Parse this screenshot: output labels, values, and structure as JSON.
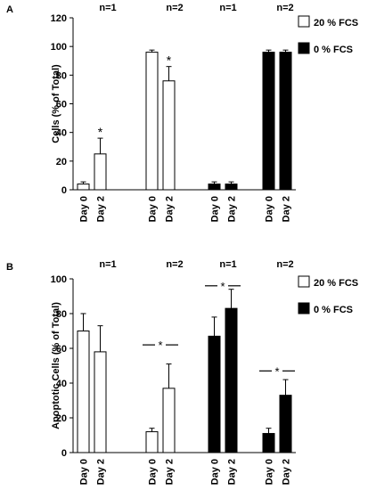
{
  "chart_data": [
    {
      "type": "bar",
      "panel_label": "A",
      "ylabel": "Cells (% of Total)",
      "ylim": [
        0,
        120
      ],
      "yticks": [
        0,
        20,
        40,
        60,
        80,
        100,
        120
      ],
      "groups": [
        {
          "n_label": "n=1",
          "condition": "20 % FCS",
          "bars": [
            {
              "label": "Day 0",
              "value": 4,
              "error": 1.5,
              "star": false
            },
            {
              "label": "Day 2",
              "value": 25,
              "error": 11,
              "star": true
            }
          ]
        },
        {
          "n_label": "n=2",
          "condition": "20 % FCS",
          "bars": [
            {
              "label": "Day 0",
              "value": 96,
              "error": 1.5,
              "star": false
            },
            {
              "label": "Day 2",
              "value": 76,
              "error": 10,
              "star": true
            }
          ]
        },
        {
          "n_label": "n=1",
          "condition": "0 % FCS",
          "bars": [
            {
              "label": "Day 0",
              "value": 4,
              "error": 1.5,
              "star": false
            },
            {
              "label": "Day 2",
              "value": 4,
              "error": 1.5,
              "star": false
            }
          ]
        },
        {
          "n_label": "n=2",
          "condition": "0 % FCS",
          "bars": [
            {
              "label": "Day 0",
              "value": 96,
              "error": 1.5,
              "star": false
            },
            {
              "label": "Day 2",
              "value": 96,
              "error": 1.5,
              "star": false
            }
          ]
        }
      ],
      "brackets": [],
      "legend": [
        {
          "label": "20 % FCS",
          "fill": "#ffffff"
        },
        {
          "label": "0 % FCS",
          "fill": "#000000"
        }
      ]
    },
    {
      "type": "bar",
      "panel_label": "B",
      "ylabel": "Apoptotic Cells (% of Total)",
      "ylim": [
        0,
        100
      ],
      "yticks": [
        0,
        20,
        40,
        60,
        80,
        100
      ],
      "groups": [
        {
          "n_label": "n=1",
          "condition": "20 % FCS",
          "bars": [
            {
              "label": "Day 0",
              "value": 70,
              "error": 10,
              "star": false
            },
            {
              "label": "Day 2",
              "value": 58,
              "error": 15,
              "star": false
            }
          ]
        },
        {
          "n_label": "n=2",
          "condition": "20 % FCS",
          "bars": [
            {
              "label": "Day 0",
              "value": 12,
              "error": 2,
              "star": false
            },
            {
              "label": "Day 2",
              "value": 37,
              "error": 14,
              "star": false
            }
          ]
        },
        {
          "n_label": "n=1",
          "condition": "0 % FCS",
          "bars": [
            {
              "label": "Day 0",
              "value": 67,
              "error": 11,
              "star": false
            },
            {
              "label": "Day 2",
              "value": 83,
              "error": 11,
              "star": false
            }
          ]
        },
        {
          "n_label": "n=2",
          "condition": "0 % FCS",
          "bars": [
            {
              "label": "Day 0",
              "value": 11,
              "error": 3,
              "star": false
            },
            {
              "label": "Day 2",
              "value": 33,
              "error": 9,
              "star": false
            }
          ]
        }
      ],
      "brackets": [
        {
          "group": 1,
          "value": 62,
          "text": "*"
        },
        {
          "group": 2,
          "value": 96,
          "text": "*"
        },
        {
          "group": 3,
          "value": 47,
          "text": "*"
        }
      ],
      "legend": [
        {
          "label": "20 % FCS",
          "fill": "#ffffff"
        },
        {
          "label": "0 % FCS",
          "fill": "#000000"
        }
      ]
    }
  ]
}
